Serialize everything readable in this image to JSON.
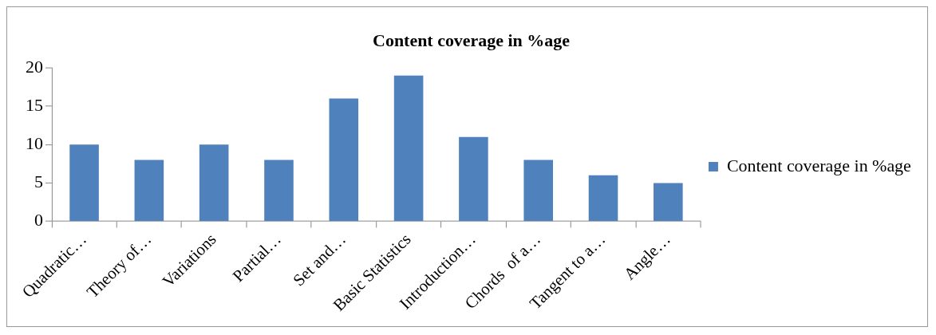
{
  "chart_data": {
    "type": "bar",
    "title": "Content coverage in %age",
    "categories": [
      "Quadratic…",
      "Theory of…",
      "Variations",
      "Partial…",
      "Set and…",
      "Basic Statistics",
      "Introduction…",
      "Chords  of a…",
      "Tangent to a…",
      "Angle…"
    ],
    "series": [
      {
        "name": "Content coverage in %age",
        "color": "#4f81bd",
        "values": [
          10,
          8,
          10,
          8,
          16,
          19,
          11,
          8,
          6,
          5
        ]
      }
    ],
    "ylim": [
      0,
      20
    ],
    "yticks": [
      0,
      5,
      10,
      15,
      20
    ],
    "grid": false,
    "legend": "right"
  }
}
